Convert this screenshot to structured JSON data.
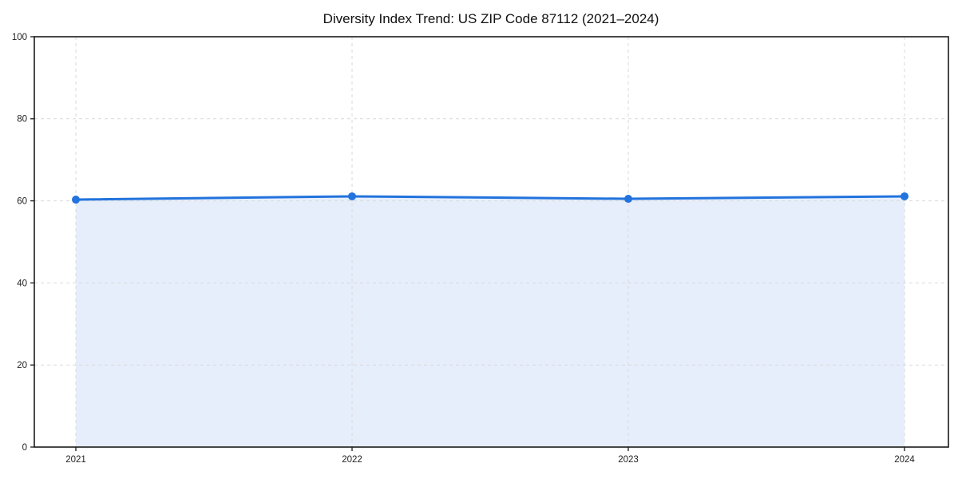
{
  "chart": {
    "title": "Diversity Index Trend: US ZIP Code 87112 (2021–2024)"
  },
  "chart_data": {
    "type": "area",
    "x": [
      "2021",
      "2022",
      "2023",
      "2024"
    ],
    "values": [
      60.3,
      61.1,
      60.5,
      61.1
    ],
    "title": "Diversity Index Trend: US ZIP Code 87112 (2021–2024)",
    "xlabel": "",
    "ylabel": "",
    "ylim": [
      0,
      100
    ],
    "yticks": [
      0,
      20,
      40,
      60,
      80,
      100
    ],
    "grid": "dashed gridlines on both axes",
    "legend": "none",
    "markers": "filled circles at each year",
    "colors": {
      "line": "#2273dd",
      "fill": "#e6eefb",
      "marker": "#2273dd",
      "grid": "#d9d9d9",
      "spine": "#1a1a1a",
      "tick_label": "#222222",
      "title": "#111111",
      "background": "#ffffff"
    }
  }
}
